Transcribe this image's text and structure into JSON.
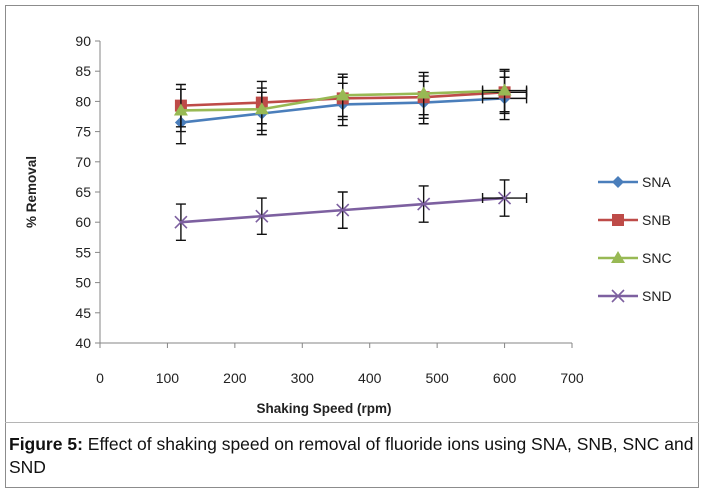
{
  "caption": {
    "label": "Figure 5:",
    "text": " Effect of shaking speed on removal of fluoride ions using SNA, SNB, SNC and SND"
  },
  "chart_data": {
    "type": "line",
    "xlabel": "Shaking Speed  (rpm)",
    "ylabel": "% Removal",
    "xlim": [
      0,
      700
    ],
    "ylim": [
      40,
      90
    ],
    "x_ticks": [
      0,
      100,
      200,
      300,
      400,
      500,
      600,
      700
    ],
    "y_ticks": [
      40,
      45,
      50,
      55,
      60,
      65,
      70,
      75,
      80,
      85,
      90
    ],
    "grid": false,
    "legend": "right",
    "x": [
      120,
      240,
      360,
      480,
      600
    ],
    "series": [
      {
        "name": "SNA",
        "values": [
          76.5,
          78,
          79.5,
          79.8,
          80.5
        ],
        "error": [
          3.5,
          3.5,
          3.5,
          3.5,
          3.5
        ],
        "color": "#4a7ebb",
        "marker": "diamond"
      },
      {
        "name": "SNB",
        "values": [
          79.3,
          79.8,
          80.5,
          80.7,
          81.5
        ],
        "error": [
          3.5,
          3.5,
          3.5,
          3.5,
          3.5
        ],
        "color": "#be4b48",
        "marker": "square"
      },
      {
        "name": "SNC",
        "values": [
          78.5,
          78.7,
          81,
          81.3,
          81.8
        ],
        "error": [
          3.5,
          3.5,
          3.5,
          3.5,
          3.5
        ],
        "color": "#98b954",
        "marker": "triangle"
      },
      {
        "name": "SND",
        "values": [
          60,
          61,
          62,
          63,
          64
        ],
        "error": [
          3,
          3,
          3,
          3,
          3
        ],
        "color": "#7d60a0",
        "marker": "x"
      }
    ]
  }
}
